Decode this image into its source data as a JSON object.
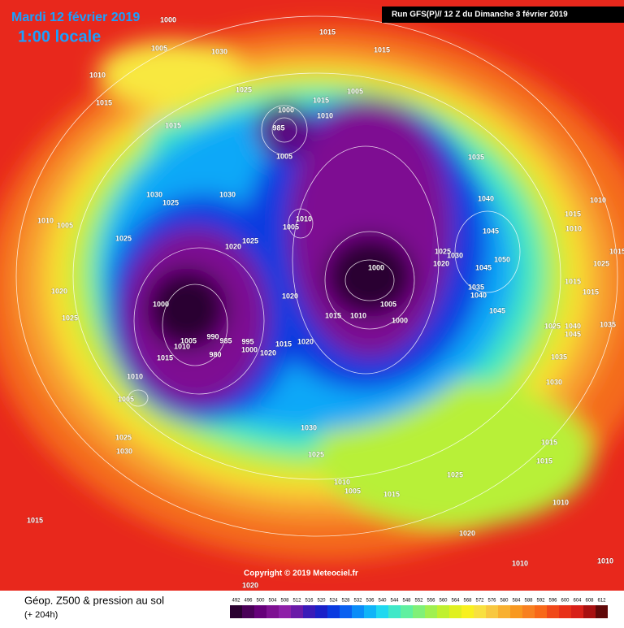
{
  "header": {
    "date": "Mardi 12 février 2019",
    "time": "1:00 locale",
    "run": "Run GFS(P)// 12 Z du Dimanche 3 février 2019"
  },
  "map": {
    "isobar_labels": [
      1000,
      1005,
      1030,
      1015,
      1015,
      1010,
      1015,
      1025,
      1015,
      1005,
      1000,
      1010,
      985,
      1015,
      1005,
      1035,
      1030,
      1025,
      1030,
      1040,
      1010,
      1010,
      1005,
      1005,
      1010,
      1015,
      1010,
      1025,
      1025,
      1020,
      1045,
      1050,
      1025,
      1020,
      1030,
      1045,
      1025,
      1015,
      1000,
      1020,
      1035,
      1040,
      1015,
      1015,
      1020,
      1000,
      1005,
      1025,
      1015,
      1010,
      1045,
      1000,
      1025,
      1045,
      1040,
      1035,
      1005,
      1010,
      990,
      985,
      995,
      1000,
      1015,
      1020,
      980,
      1015,
      1020,
      1035,
      1010,
      1030,
      1005,
      1030,
      1025,
      1030,
      1025,
      1015,
      1015,
      1025,
      1010,
      1005,
      1015,
      1010,
      1015,
      1020,
      1010,
      1010,
      1020
    ]
  },
  "copyright": "Copyright © 2019 Meteociel.fr",
  "footer": {
    "title": "Géop. Z500 & pression au sol",
    "lead": "(+ 204h)"
  },
  "scale": {
    "labels": [
      492,
      496,
      500,
      504,
      508,
      512,
      516,
      520,
      524,
      528,
      532,
      536,
      540,
      544,
      548,
      552,
      556,
      560,
      564,
      568,
      572,
      576,
      580,
      584,
      588,
      592,
      596,
      600,
      604,
      608,
      612
    ],
    "colors": [
      "#2a0030",
      "#4a0058",
      "#66007a",
      "#7e1092",
      "#8e20a8",
      "#6a1aa8",
      "#3a1ab8",
      "#1a20c8",
      "#0a3ae0",
      "#0a60f0",
      "#0a8cf8",
      "#10b4f8",
      "#20d8f0",
      "#40e8c8",
      "#60f0a0",
      "#80f078",
      "#a0f050",
      "#c0f030",
      "#e0f020",
      "#f8f020",
      "#f8e040",
      "#f8c840",
      "#f8b030",
      "#f89820",
      "#f88020",
      "#f86818",
      "#f04818",
      "#e83018",
      "#d82018",
      "#a81010",
      "#600808"
    ]
  }
}
